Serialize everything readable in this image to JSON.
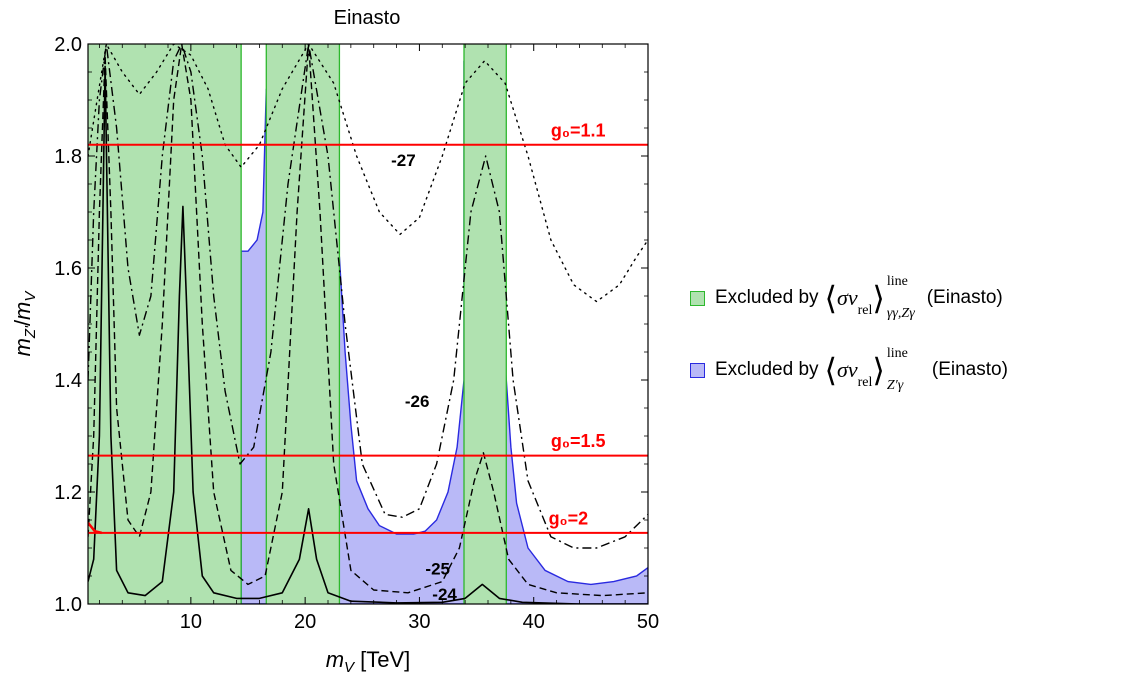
{
  "chart_data": {
    "type": "line",
    "title": "Einasto",
    "xlabel": "m_V [TeV]",
    "ylabel": "m_Z'/m_V",
    "xlim": [
      1,
      50
    ],
    "ylim": [
      1.0,
      2.0
    ],
    "x_ticks": [
      10,
      20,
      30,
      40,
      50
    ],
    "y_ticks": [
      1.0,
      1.2,
      1.4,
      1.6,
      1.8,
      2.0
    ],
    "grid": false,
    "legend_position": "right",
    "colors": {
      "green_fill": "#b0e2b0",
      "green_edge": "#2db82d",
      "blue_fill": "#b9b9f7",
      "blue_edge": "#2a2ae0",
      "g0_line": "#ff0000"
    },
    "excluded_green_bands": [
      [
        1,
        14.4
      ],
      [
        16.6,
        23.0
      ],
      [
        33.9,
        37.6
      ]
    ],
    "excluded_blue_region": [
      [
        14.4,
        1.0
      ],
      [
        14.4,
        1.63
      ],
      [
        15.0,
        1.63
      ],
      [
        15.8,
        1.65
      ],
      [
        16.3,
        1.7
      ],
      [
        16.6,
        1.92
      ],
      [
        18.0,
        1.8
      ],
      [
        20.0,
        1.74
      ],
      [
        22.0,
        1.65
      ],
      [
        23.0,
        1.62
      ],
      [
        23.5,
        1.45
      ],
      [
        24.0,
        1.32
      ],
      [
        24.5,
        1.22
      ],
      [
        25.5,
        1.17
      ],
      [
        26.5,
        1.14
      ],
      [
        28.0,
        1.125
      ],
      [
        29.5,
        1.125
      ],
      [
        30.5,
        1.13
      ],
      [
        31.5,
        1.15
      ],
      [
        32.5,
        1.2
      ],
      [
        33.3,
        1.28
      ],
      [
        33.9,
        1.4
      ],
      [
        33.9,
        1.97
      ],
      [
        35.0,
        1.8
      ],
      [
        36.0,
        1.7
      ],
      [
        37.0,
        1.55
      ],
      [
        37.6,
        1.4
      ],
      [
        38.0,
        1.28
      ],
      [
        38.5,
        1.18
      ],
      [
        39.5,
        1.1
      ],
      [
        41.0,
        1.06
      ],
      [
        43.0,
        1.04
      ],
      [
        45.0,
        1.035
      ],
      [
        47.0,
        1.04
      ],
      [
        49.0,
        1.05
      ],
      [
        50.0,
        1.065
      ],
      [
        50.0,
        1.0
      ]
    ],
    "g0_lines": [
      {
        "label": "g₀=1.1",
        "y": 1.82
      },
      {
        "label": "g₀=1.5",
        "y": 1.265
      },
      {
        "label": "g₀=2",
        "y": 1.127
      }
    ],
    "contours": [
      {
        "label": "-24",
        "style": "solid",
        "points": [
          [
            1.0,
            1.04
          ],
          [
            1.5,
            1.08
          ],
          [
            2.0,
            1.3
          ],
          [
            2.3,
            1.7
          ],
          [
            2.5,
            1.96
          ],
          [
            2.7,
            1.7
          ],
          [
            3.0,
            1.3
          ],
          [
            3.5,
            1.06
          ],
          [
            4.5,
            1.02
          ],
          [
            6.0,
            1.015
          ],
          [
            7.5,
            1.04
          ],
          [
            8.5,
            1.2
          ],
          [
            9.0,
            1.55
          ],
          [
            9.3,
            1.71
          ],
          [
            9.6,
            1.55
          ],
          [
            10.2,
            1.2
          ],
          [
            11.0,
            1.05
          ],
          [
            12.0,
            1.02
          ],
          [
            14.0,
            1.01
          ],
          [
            16.0,
            1.01
          ],
          [
            18.0,
            1.02
          ],
          [
            19.5,
            1.08
          ],
          [
            20.3,
            1.17
          ],
          [
            21.0,
            1.08
          ],
          [
            22.0,
            1.02
          ],
          [
            24.0,
            1.005
          ],
          [
            28.0,
            1.002
          ],
          [
            32.0,
            1.003
          ],
          [
            34.0,
            1.01
          ],
          [
            35.5,
            1.035
          ],
          [
            37.0,
            1.01
          ],
          [
            39.0,
            1.003
          ],
          [
            44.0,
            1.0
          ],
          [
            50.0,
            1.0
          ]
        ]
      },
      {
        "label": "-25",
        "style": "dashed",
        "points": [
          [
            1.0,
            1.12
          ],
          [
            1.5,
            1.3
          ],
          [
            2.0,
            1.7
          ],
          [
            2.5,
            1.98
          ],
          [
            3.0,
            1.7
          ],
          [
            3.5,
            1.35
          ],
          [
            4.5,
            1.15
          ],
          [
            5.5,
            1.12
          ],
          [
            6.5,
            1.2
          ],
          [
            7.5,
            1.5
          ],
          [
            8.5,
            1.9
          ],
          [
            9.2,
            2.0
          ],
          [
            10.0,
            1.9
          ],
          [
            11.0,
            1.5
          ],
          [
            12.0,
            1.2
          ],
          [
            13.5,
            1.06
          ],
          [
            15.0,
            1.035
          ],
          [
            16.5,
            1.05
          ],
          [
            18.0,
            1.2
          ],
          [
            19.3,
            1.7
          ],
          [
            20.3,
            2.0
          ],
          [
            21.3,
            1.7
          ],
          [
            22.5,
            1.25
          ],
          [
            24.0,
            1.06
          ],
          [
            26.0,
            1.025
          ],
          [
            29.0,
            1.02
          ],
          [
            32.0,
            1.04
          ],
          [
            33.5,
            1.1
          ],
          [
            34.8,
            1.22
          ],
          [
            35.6,
            1.27
          ],
          [
            36.5,
            1.2
          ],
          [
            37.8,
            1.08
          ],
          [
            39.5,
            1.035
          ],
          [
            42.0,
            1.02
          ],
          [
            46.0,
            1.015
          ],
          [
            50.0,
            1.02
          ]
        ]
      },
      {
        "label": "-26",
        "style": "dashdot",
        "points": [
          [
            1.0,
            1.4
          ],
          [
            1.5,
            1.7
          ],
          [
            2.0,
            1.9
          ],
          [
            2.6,
            2.0
          ],
          [
            3.5,
            1.85
          ],
          [
            4.5,
            1.6
          ],
          [
            5.5,
            1.48
          ],
          [
            6.5,
            1.55
          ],
          [
            7.5,
            1.8
          ],
          [
            8.5,
            1.97
          ],
          [
            9.2,
            2.0
          ],
          [
            10.0,
            1.95
          ],
          [
            11.0,
            1.8
          ],
          [
            12.0,
            1.55
          ],
          [
            13.0,
            1.38
          ],
          [
            14.3,
            1.25
          ],
          [
            15.5,
            1.28
          ],
          [
            17.0,
            1.45
          ],
          [
            18.5,
            1.75
          ],
          [
            20.3,
            2.0
          ],
          [
            22.0,
            1.8
          ],
          [
            23.5,
            1.5
          ],
          [
            25.0,
            1.25
          ],
          [
            27.0,
            1.16
          ],
          [
            28.5,
            1.155
          ],
          [
            30.0,
            1.17
          ],
          [
            31.5,
            1.25
          ],
          [
            33.0,
            1.4
          ],
          [
            34.5,
            1.7
          ],
          [
            35.8,
            1.8
          ],
          [
            37.0,
            1.7
          ],
          [
            38.2,
            1.4
          ],
          [
            39.5,
            1.22
          ],
          [
            41.5,
            1.12
          ],
          [
            43.5,
            1.1
          ],
          [
            45.5,
            1.1
          ],
          [
            48.0,
            1.12
          ],
          [
            50.0,
            1.16
          ]
        ]
      },
      {
        "label": "-27",
        "style": "dotted",
        "points": [
          [
            1.0,
            1.8
          ],
          [
            1.8,
            1.9
          ],
          [
            2.6,
            2.0
          ],
          [
            4.0,
            1.95
          ],
          [
            5.5,
            1.91
          ],
          [
            7.0,
            1.95
          ],
          [
            8.5,
            2.0
          ],
          [
            10.0,
            1.98
          ],
          [
            11.5,
            1.92
          ],
          [
            13.0,
            1.82
          ],
          [
            14.4,
            1.78
          ],
          [
            16.0,
            1.82
          ],
          [
            18.0,
            1.92
          ],
          [
            20.3,
            2.0
          ],
          [
            22.5,
            1.93
          ],
          [
            24.5,
            1.8
          ],
          [
            26.5,
            1.7
          ],
          [
            28.3,
            1.66
          ],
          [
            30.0,
            1.69
          ],
          [
            32.0,
            1.8
          ],
          [
            34.0,
            1.93
          ],
          [
            35.7,
            1.97
          ],
          [
            37.5,
            1.93
          ],
          [
            39.5,
            1.8
          ],
          [
            41.5,
            1.65
          ],
          [
            43.5,
            1.57
          ],
          [
            45.5,
            1.54
          ],
          [
            47.5,
            1.57
          ],
          [
            49.0,
            1.62
          ],
          [
            50.0,
            1.65
          ]
        ]
      }
    ],
    "contour_label_positions": [
      {
        "label": "-27",
        "x": 28.6,
        "y": 1.79
      },
      {
        "label": "-26",
        "x": 29.8,
        "y": 1.36
      },
      {
        "label": "-25",
        "x": 31.6,
        "y": 1.061
      },
      {
        "label": "-24",
        "x": 32.2,
        "y": 1.015
      }
    ],
    "g_label_positions": [
      {
        "index": 0,
        "x": 41.5,
        "y": 1.835
      },
      {
        "index": 1,
        "x": 41.5,
        "y": 1.28
      },
      {
        "index": 2,
        "x": 41.3,
        "y": 1.142
      }
    ],
    "legend": [
      {
        "text": "Excluded by",
        "sup": "line",
        "sub": "γγ,Zγ",
        "note": "(Einasto)",
        "color": "green"
      },
      {
        "text": "Excluded by",
        "sup": "line",
        "sub": "Z′γ",
        "note": "(Einasto)",
        "color": "blue"
      }
    ],
    "legend_math": {
      "sigma_v": "σv",
      "rel": "rel",
      "left": "⟨",
      "right": "⟩"
    }
  }
}
